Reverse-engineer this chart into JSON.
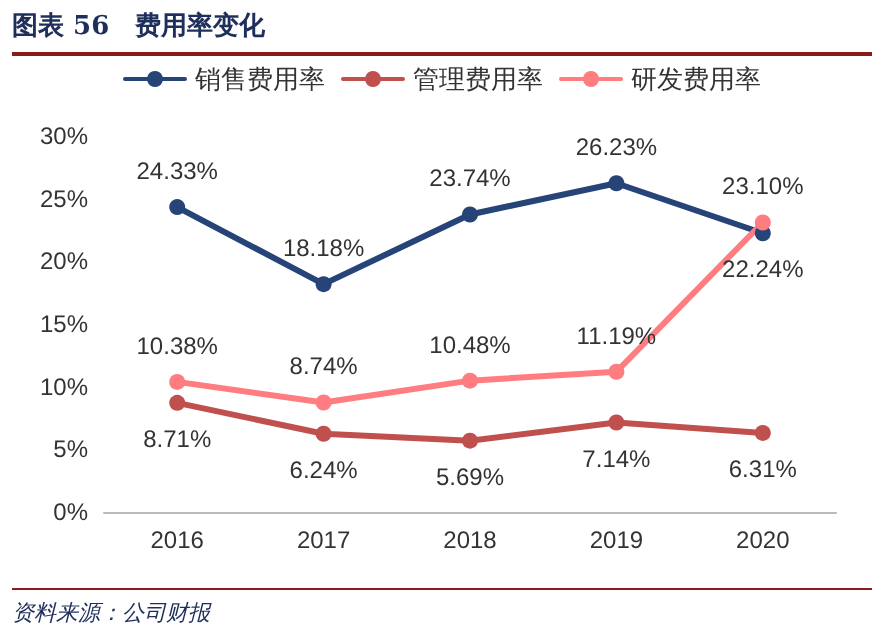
{
  "chart_data": {
    "type": "line",
    "title": "图表 56　费用率变化",
    "categories": [
      "2016",
      "2017",
      "2018",
      "2019",
      "2020"
    ],
    "series": [
      {
        "name": "销售费用率",
        "color": "#264478",
        "values": [
          24.33,
          18.18,
          23.74,
          26.23,
          22.24
        ],
        "value_labels": [
          "24.33%",
          "18.18%",
          "23.74%",
          "26.23%",
          "22.24%"
        ]
      },
      {
        "name": "管理费用率",
        "color": "#c0504d",
        "values": [
          8.71,
          6.24,
          5.69,
          7.14,
          6.31
        ],
        "value_labels": [
          "8.71%",
          "6.24%",
          "5.69%",
          "7.14%",
          "6.31%"
        ]
      },
      {
        "name": "研发费用率",
        "color": "#ff7c80",
        "values": [
          10.38,
          8.74,
          10.48,
          11.19,
          23.1
        ],
        "value_labels": [
          "10.38%",
          "8.74%",
          "10.48%",
          "11.19%",
          "23.10%"
        ]
      }
    ],
    "ylim": [
      0,
      30
    ],
    "yticks": [
      {
        "value": 0,
        "label": "0%"
      },
      {
        "value": 5,
        "label": "5%"
      },
      {
        "value": 10,
        "label": "10%"
      },
      {
        "value": 15,
        "label": "15%"
      },
      {
        "value": 20,
        "label": "20%"
      },
      {
        "value": 25,
        "label": "25%"
      },
      {
        "value": 30,
        "label": "30%"
      }
    ],
    "legend": "top",
    "grid": false,
    "marker": "circle",
    "line_style": "solid",
    "annotations": [
      "资料来源：公司财报"
    ]
  }
}
